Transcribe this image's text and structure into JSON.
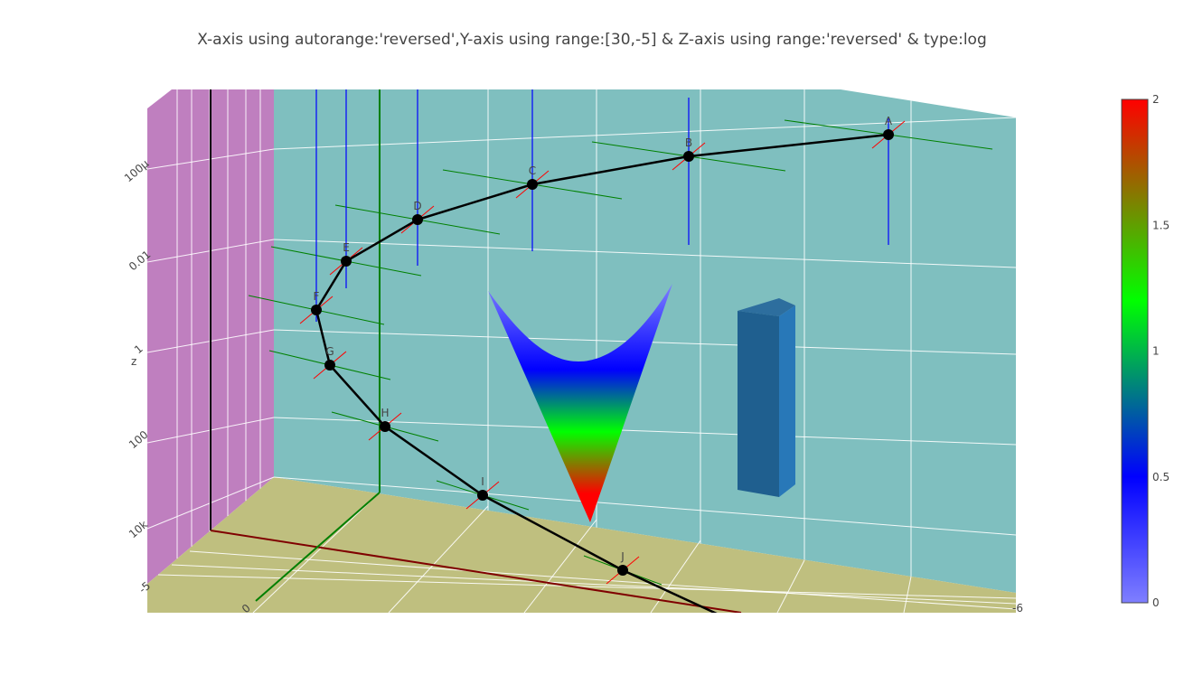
{
  "title": "X-axis using autorange:'reversed',Y-axis using range:[30,-5] & Z-axis using range:'reversed' & type:log",
  "colors": {
    "back_wall": "#7fbfbf",
    "side_wall": "#bf7fbf",
    "floor": "#bfbf7f",
    "grid": "#ffffff",
    "line": "#000000",
    "marker": "#000000",
    "error_x": "#ff0000",
    "error_y": "#008000",
    "error_z": "#0000ff",
    "x_axis_line": "#7f0000",
    "y_axis_line": "#007f00",
    "z_axis_line": "#000000",
    "bar_front": "#1f5f8f",
    "bar_side": "#2878b8",
    "bar_top": "#2d6e9e"
  },
  "colorscale": [
    "#7f7fff",
    "#0000ff",
    "#00ff00",
    "#ff0000"
  ],
  "chart_data": {
    "type": "scatter3d",
    "title": "X-axis using autorange:'reversed',Y-axis using range:[30,-5] & Z-axis using range:'reversed' & type:log",
    "axes": {
      "x": {
        "autorange": "reversed"
      },
      "y": {
        "range": [
          30,
          -5
        ],
        "tick_labels": [
          "-5",
          "0"
        ]
      },
      "z": {
        "title": "z",
        "range": "reversed",
        "type": "log",
        "tick_labels": [
          "100μ",
          "0.01",
          "1",
          "100",
          "10k"
        ]
      },
      "x_tick_labels": [
        "-6"
      ]
    },
    "points": [
      {
        "label": "A"
      },
      {
        "label": "B"
      },
      {
        "label": "C"
      },
      {
        "label": "D"
      },
      {
        "label": "E"
      },
      {
        "label": "F"
      },
      {
        "label": "G"
      },
      {
        "label": "H"
      },
      {
        "label": "I"
      },
      {
        "label": "J"
      }
    ],
    "colorbar": {
      "min": 0,
      "max": 2,
      "ticks": [
        "0",
        "0.5",
        "1",
        "1.5",
        "2"
      ]
    },
    "traces": [
      "scatter3d lines+markers+text with error bars",
      "surface",
      "mesh3d box"
    ]
  }
}
